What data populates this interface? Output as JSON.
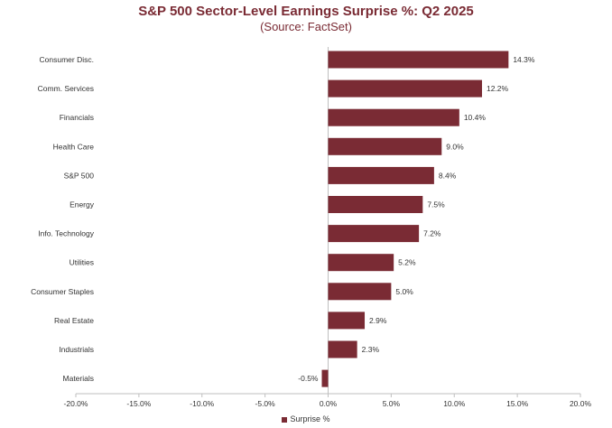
{
  "chart_data": {
    "type": "bar",
    "orientation": "horizontal",
    "title": "S&P 500 Sector-Level Earnings Surprise %: Q2 2025",
    "subtitle": "(Source: FactSet)",
    "categories": [
      "Consumer Disc.",
      "Comm. Services",
      "Financials",
      "Health Care",
      "S&P 500",
      "Energy",
      "Info. Technology",
      "Utilities",
      "Consumer Staples",
      "Real Estate",
      "Industrials",
      "Materials"
    ],
    "series": [
      {
        "name": "Surprise %",
        "values": [
          14.3,
          12.2,
          10.4,
          9.0,
          8.4,
          7.5,
          7.2,
          5.2,
          5.0,
          2.9,
          2.3,
          -0.5
        ]
      }
    ],
    "value_labels": [
      "14.3%",
      "12.2%",
      "10.4%",
      "9.0%",
      "8.4%",
      "7.5%",
      "7.2%",
      "5.2%",
      "5.0%",
      "2.9%",
      "2.3%",
      "-0.5%"
    ],
    "xlim": [
      -20,
      20
    ],
    "x_ticks": [
      -20,
      -15,
      -10,
      -5,
      0,
      5,
      10,
      15,
      20
    ],
    "x_tick_labels": [
      "-20.0%",
      "-15.0%",
      "-10.0%",
      "-5.0%",
      "0.0%",
      "5.0%",
      "10.0%",
      "15.0%",
      "20.0%"
    ],
    "grid": false,
    "legend_position": "bottom-center",
    "bar_color": "#7a2b34"
  }
}
